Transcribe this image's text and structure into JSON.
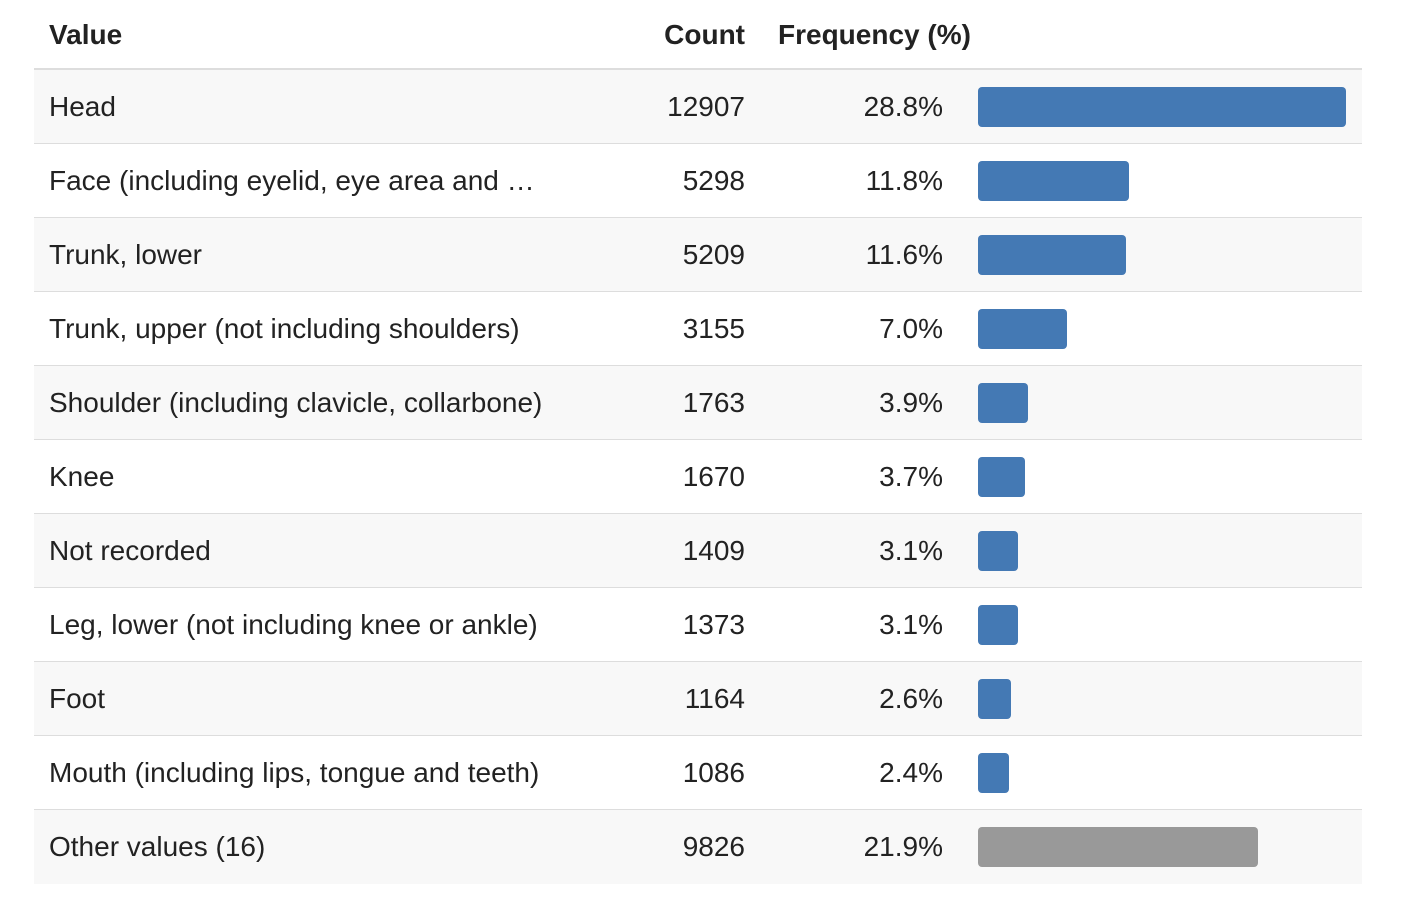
{
  "table": {
    "headers": {
      "value": "Value",
      "count": "Count",
      "frequency": "Frequency (%)"
    }
  },
  "colors": {
    "bar": "#4479b4",
    "other_bar": "#999999"
  },
  "chart_data": {
    "type": "table",
    "xlim": [
      0,
      28.8
    ],
    "rows": [
      {
        "value": "Head",
        "count": "12907",
        "percent_label": "28.8%",
        "percent": 28.8,
        "other": false
      },
      {
        "value": "Face (including eyelid, eye area and …",
        "count": "5298",
        "percent_label": "11.8%",
        "percent": 11.8,
        "other": false
      },
      {
        "value": "Trunk, lower",
        "count": "5209",
        "percent_label": "11.6%",
        "percent": 11.6,
        "other": false
      },
      {
        "value": "Trunk, upper (not including shoulders)",
        "count": "3155",
        "percent_label": "7.0%",
        "percent": 7.0,
        "other": false
      },
      {
        "value": "Shoulder (including clavicle, collarbone)",
        "count": "1763",
        "percent_label": "3.9%",
        "percent": 3.9,
        "other": false
      },
      {
        "value": "Knee",
        "count": "1670",
        "percent_label": "3.7%",
        "percent": 3.7,
        "other": false
      },
      {
        "value": "Not recorded",
        "count": "1409",
        "percent_label": "3.1%",
        "percent": 3.1,
        "other": false
      },
      {
        "value": "Leg, lower (not including knee or ankle)",
        "count": "1373",
        "percent_label": "3.1%",
        "percent": 3.1,
        "other": false
      },
      {
        "value": "Foot",
        "count": "1164",
        "percent_label": "2.6%",
        "percent": 2.6,
        "other": false
      },
      {
        "value": "Mouth (including lips, tongue and teeth)",
        "count": "1086",
        "percent_label": "2.4%",
        "percent": 2.4,
        "other": false
      },
      {
        "value": "Other values (16)",
        "count": "9826",
        "percent_label": "21.9%",
        "percent": 21.9,
        "other": true
      }
    ]
  }
}
